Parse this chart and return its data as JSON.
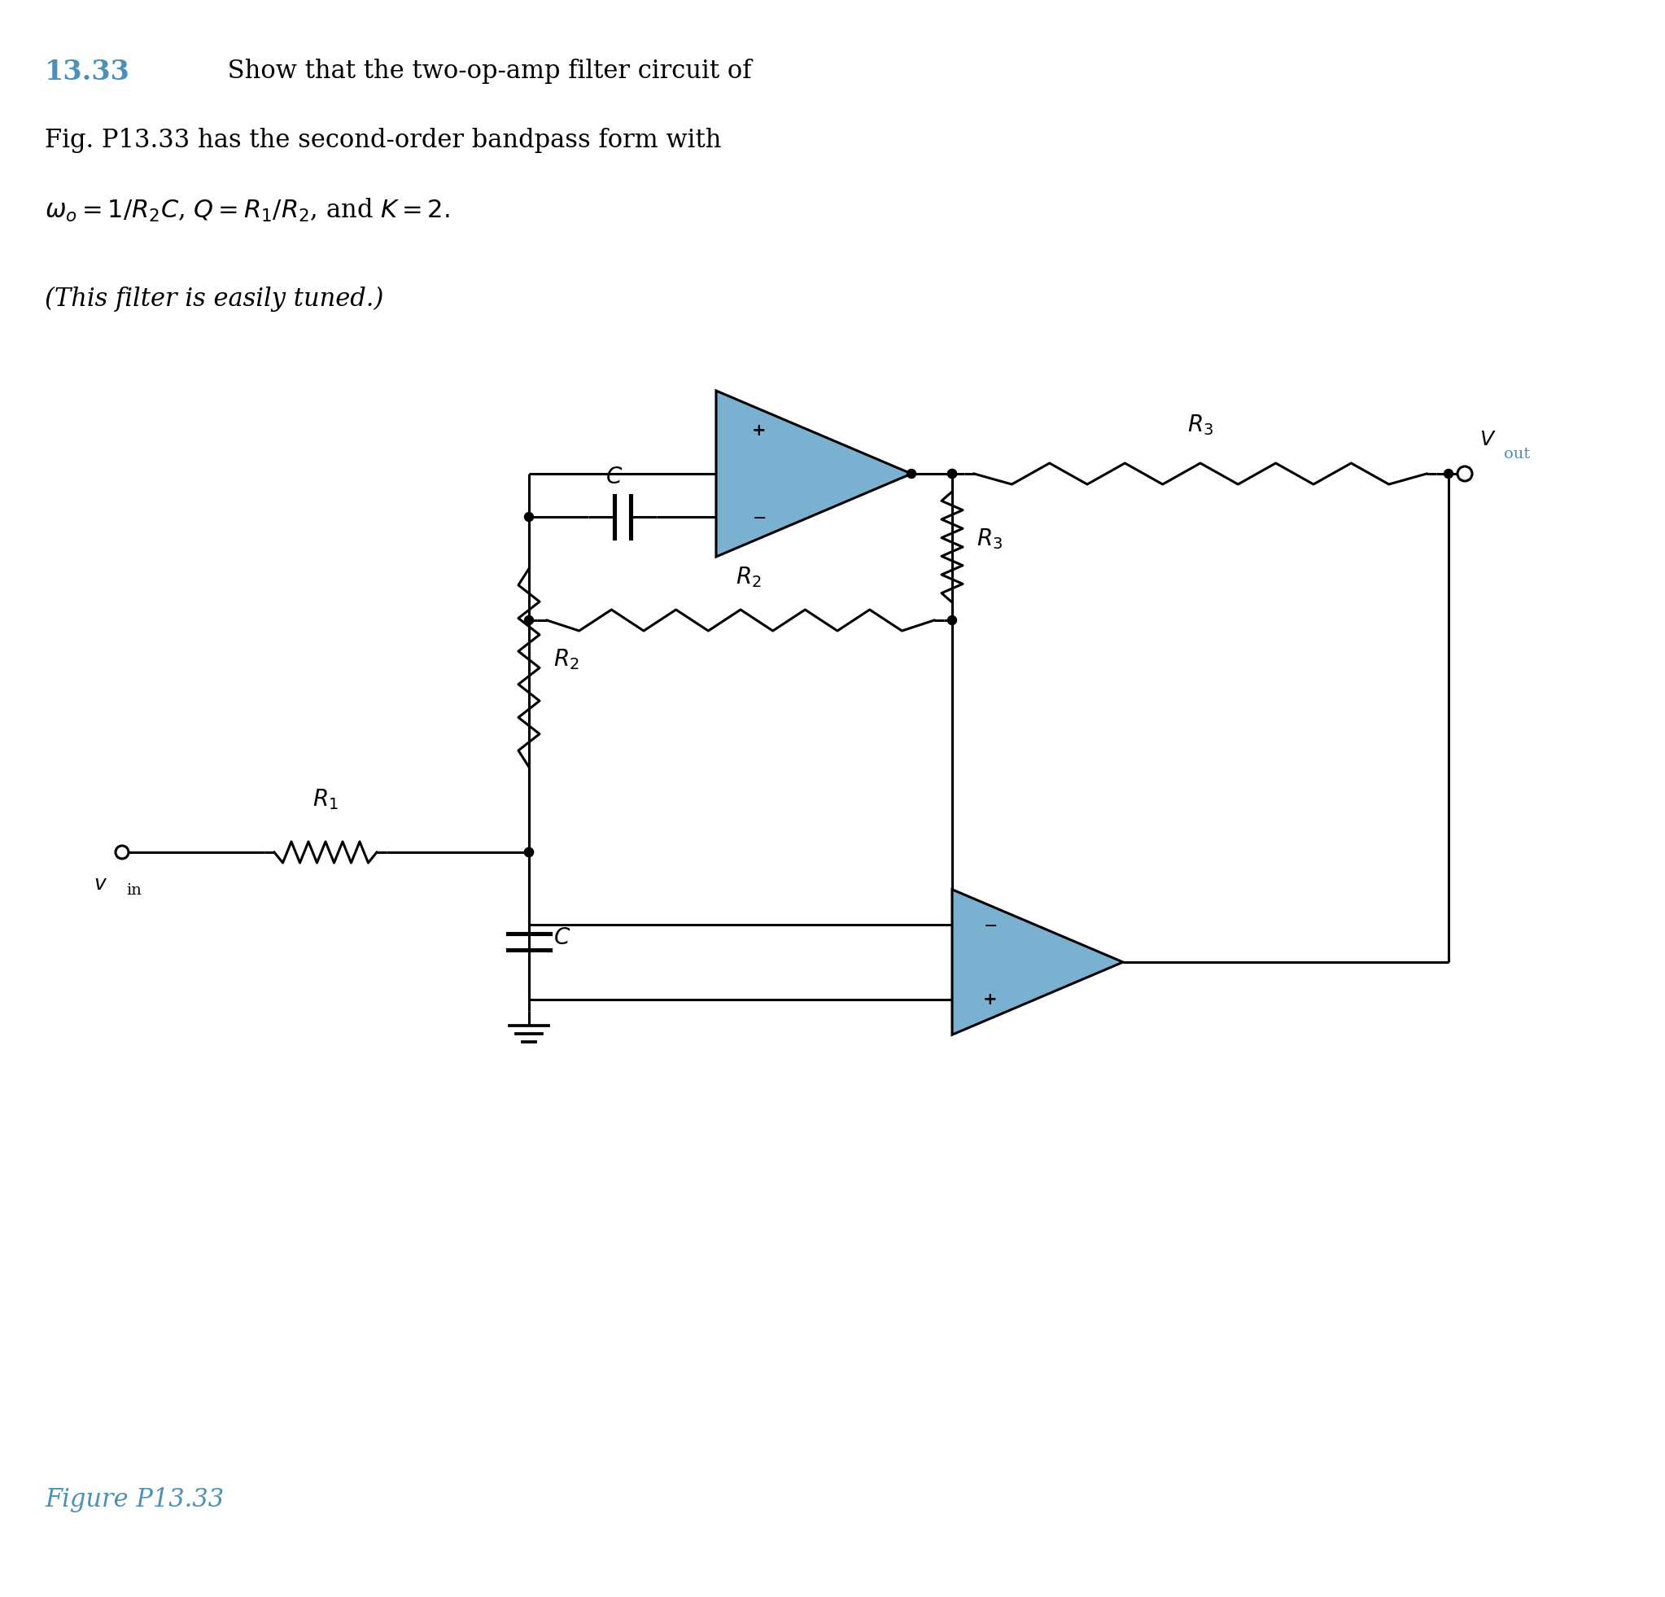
{
  "background_color": "#ffffff",
  "title_number": "13.33",
  "title_number_color": "#4a90b8",
  "title_line1": " Show that the two-op-amp filter circuit of",
  "title_line2": "Fig. P13.33 has the second-order bandpass form with",
  "title_line3": "$\\omega_o = 1/R_2C$, $Q = R_1/R_2$, and $K = 2.$",
  "subtitle": "(This filter is easily tuned.)",
  "figure_label": "Figure P13.33",
  "figure_label_color": "#4a90b8",
  "op_amp_fill": "#7ab0d0",
  "wire_color": "#000000",
  "text_color": "#000000",
  "font_size_title": 22,
  "font_size_labels": 20,
  "font_size_figure": 22
}
